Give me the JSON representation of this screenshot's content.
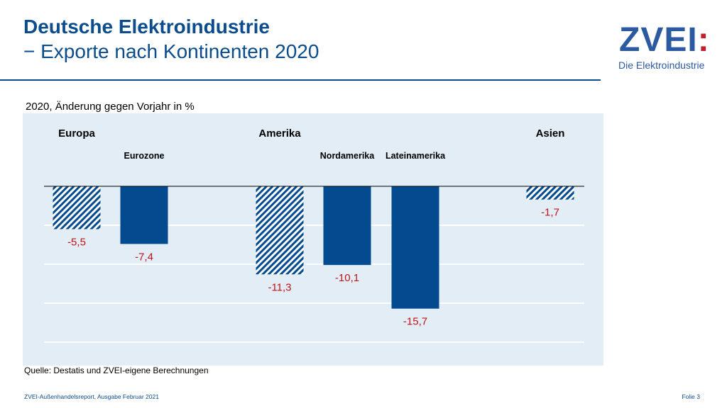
{
  "header": {
    "title": "Deutsche Elektroindustrie",
    "subtitle": "− Exporte nach Kontinenten 2020"
  },
  "logo": {
    "text": "ZVEI",
    "colon": ":",
    "tagline": "Die Elektroindustrie"
  },
  "chart_subtitle": "2020, Änderung gegen Vorjahr in %",
  "chart_data": {
    "type": "bar",
    "title": "",
    "xlabel": "",
    "ylabel": "",
    "ylim": [
      -20,
      0
    ],
    "grid": true,
    "group_labels": [
      "Europa",
      "Amerika",
      "Asien"
    ],
    "categories": [
      "Europa",
      "Eurozone",
      "Amerika",
      "Nordamerika",
      "Lateinamerika",
      "Asien"
    ],
    "category_labels": [
      "",
      "Eurozone",
      "",
      "Nordamerika",
      "Lateinamerika",
      ""
    ],
    "values": [
      -5.5,
      -7.4,
      -11.3,
      -10.1,
      -15.7,
      -1.7
    ],
    "value_labels": [
      "-5,5",
      "-7,4",
      "-11,3",
      "-10,1",
      "-15,7",
      "-1,7"
    ],
    "styles": [
      "hatched",
      "solid",
      "hatched",
      "solid",
      "solid",
      "hatched"
    ],
    "colors": {
      "bar": "#034a8f",
      "hatch": "#034a8f",
      "value_label": "#c0141c",
      "background": "#e2edf5",
      "grid": "#ffffff"
    }
  },
  "source": "Quelle: Destatis und ZVEI-eigene Berechnungen",
  "footer": {
    "left": "ZVEI-Außenhandelsreport, Ausgabe Februar 2021",
    "right": "Folie 3"
  }
}
